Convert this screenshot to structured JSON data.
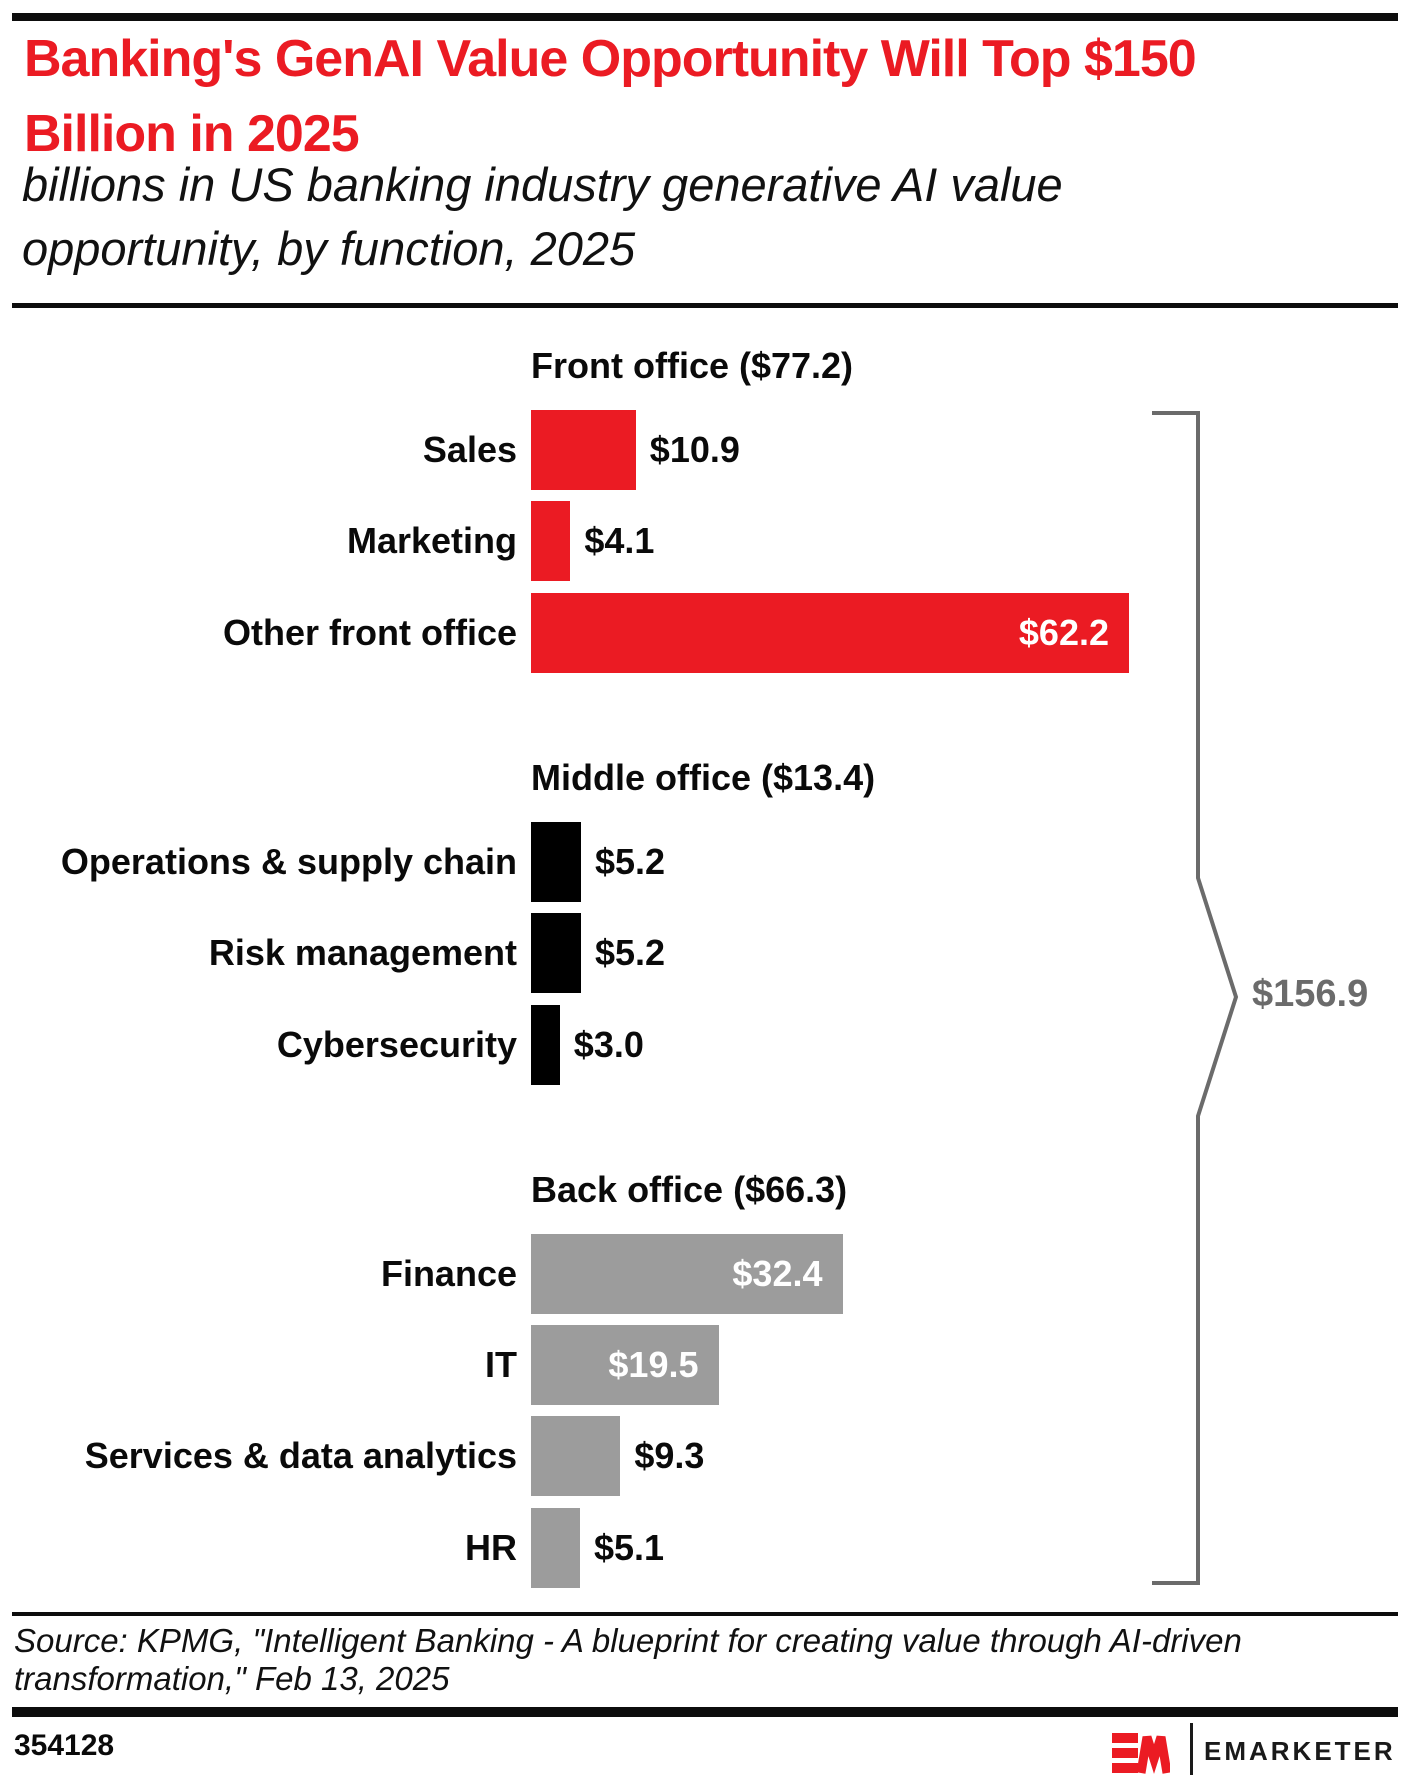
{
  "header": {
    "title_lines": [
      "Banking's GenAI Value Opportunity Will Top $150",
      "Billion in 2025"
    ],
    "subtitle_lines": [
      "billions in US banking industry generative AI value",
      "opportunity, by function, 2025"
    ]
  },
  "colors": {
    "accent_red": "#EB1B23",
    "bar_black": "#000000",
    "bar_gray": "#9C9C9C",
    "total_gray": "#6B6B6B"
  },
  "chart_data": {
    "type": "bar",
    "orientation": "horizontal",
    "unit": "USD billions",
    "title": "Banking's GenAI Value Opportunity Will Top $150 Billion in 2025",
    "subtitle": "billions in US banking industry generative AI value opportunity, by function, 2025",
    "xlim": [
      0,
      65
    ],
    "grid": false,
    "legend": false,
    "groups": [
      {
        "heading": "Front office ($77.2)",
        "group_total": 77.2,
        "color": "#EB1B23",
        "bars": [
          {
            "label": "Sales",
            "value": 10.9,
            "display": "$10.9",
            "value_inside": false
          },
          {
            "label": "Marketing",
            "value": 4.1,
            "display": "$4.1",
            "value_inside": false
          },
          {
            "label": "Other front office",
            "value": 62.2,
            "display": "$62.2",
            "value_inside": true
          }
        ]
      },
      {
        "heading": "Middle office ($13.4)",
        "group_total": 13.4,
        "color": "#000000",
        "bars": [
          {
            "label": "Operations & supply chain",
            "value": 5.2,
            "display": "$5.2",
            "value_inside": false
          },
          {
            "label": "Risk management",
            "value": 5.2,
            "display": "$5.2",
            "value_inside": false
          },
          {
            "label": "Cybersecurity",
            "value": 3.0,
            "display": "$3.0",
            "value_inside": false
          }
        ]
      },
      {
        "heading": "Back office ($66.3)",
        "group_total": 66.3,
        "color": "#9C9C9C",
        "bars": [
          {
            "label": "Finance",
            "value": 32.4,
            "display": "$32.4",
            "value_inside": true
          },
          {
            "label": "IT",
            "value": 19.5,
            "display": "$19.5",
            "value_inside": true
          },
          {
            "label": "Services & data analytics",
            "value": 9.3,
            "display": "$9.3",
            "value_inside": false
          },
          {
            "label": "HR",
            "value": 5.1,
            "display": "$5.1",
            "value_inside": false
          }
        ]
      }
    ],
    "grand_total": {
      "value": 156.9,
      "display": "$156.9"
    }
  },
  "source": {
    "lines": [
      "Source: KPMG, \"Intelligent Banking - A blueprint for creating value through AI-driven",
      "transformation,\" Feb 13, 2025"
    ]
  },
  "footer": {
    "chart_id": "354128",
    "brand": "EMARKETER"
  }
}
